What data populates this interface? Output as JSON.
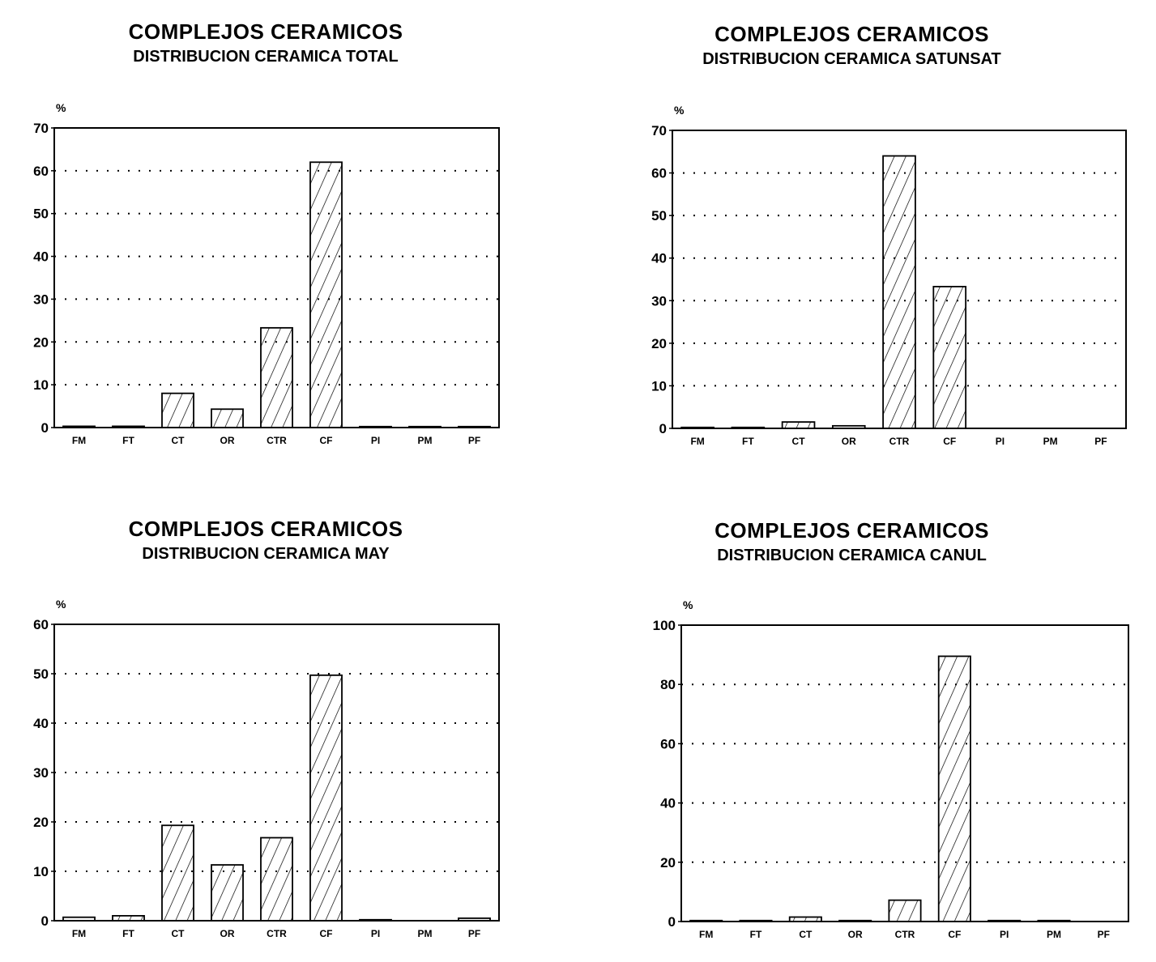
{
  "chart_data": [
    {
      "type": "bar",
      "title": "COMPLEJOS CERAMICOS",
      "subtitle": "DISTRIBUCION CERAMICA TOTAL",
      "ylabel": "%",
      "categories": [
        "FM",
        "FT",
        "CT",
        "OR",
        "CTR",
        "CF",
        "PI",
        "PM",
        "PF"
      ],
      "values": [
        0.3,
        0.3,
        8,
        4.3,
        23.3,
        62,
        0.1,
        0.1,
        0.2
      ],
      "ylim": [
        0,
        70
      ],
      "yticks": [
        0,
        10,
        20,
        30,
        40,
        50,
        60,
        70
      ],
      "grid": "dotted horizontal",
      "bar_fill": "diagonal hatch"
    },
    {
      "type": "bar",
      "title": "COMPLEJOS CERAMICOS",
      "subtitle": "DISTRIBUCION CERAMICA SATUNSAT",
      "ylabel": "%",
      "categories": [
        "FM",
        "FT",
        "CT",
        "OR",
        "CTR",
        "CF",
        "PI",
        "PM",
        "PF"
      ],
      "values": [
        0.1,
        0.1,
        1.5,
        0.6,
        64,
        33.3,
        0,
        0,
        0
      ],
      "ylim": [
        0,
        70
      ],
      "yticks": [
        0,
        10,
        20,
        30,
        40,
        50,
        60,
        70
      ],
      "grid": "dotted horizontal",
      "bar_fill": "diagonal hatch"
    },
    {
      "type": "bar",
      "title": "COMPLEJOS CERAMICOS",
      "subtitle": "DISTRIBUCION CERAMICA MAY",
      "ylabel": "%",
      "categories": [
        "FM",
        "FT",
        "CT",
        "OR",
        "CTR",
        "CF",
        "PI",
        "PM",
        "PF"
      ],
      "values": [
        0.7,
        1,
        19.3,
        11.3,
        16.8,
        49.7,
        0.2,
        0,
        0.5
      ],
      "ylim": [
        0,
        60
      ],
      "yticks": [
        0,
        10,
        20,
        30,
        40,
        50,
        60
      ],
      "grid": "dotted horizontal",
      "bar_fill": "diagonal hatch"
    },
    {
      "type": "bar",
      "title": "COMPLEJOS CERAMICOS",
      "subtitle": "DISTRIBUCION CERAMICA CANUL",
      "ylabel": "%",
      "categories": [
        "FM",
        "FT",
        "CT",
        "OR",
        "CTR",
        "CF",
        "PI",
        "PM",
        "PF"
      ],
      "values": [
        0.2,
        0.2,
        1.5,
        0.1,
        7.2,
        89.5,
        0.3,
        0.1,
        0
      ],
      "ylim": [
        0,
        100
      ],
      "yticks": [
        0,
        20,
        40,
        60,
        80,
        100
      ],
      "grid": "dotted horizontal",
      "bar_fill": "diagonal hatch"
    }
  ]
}
